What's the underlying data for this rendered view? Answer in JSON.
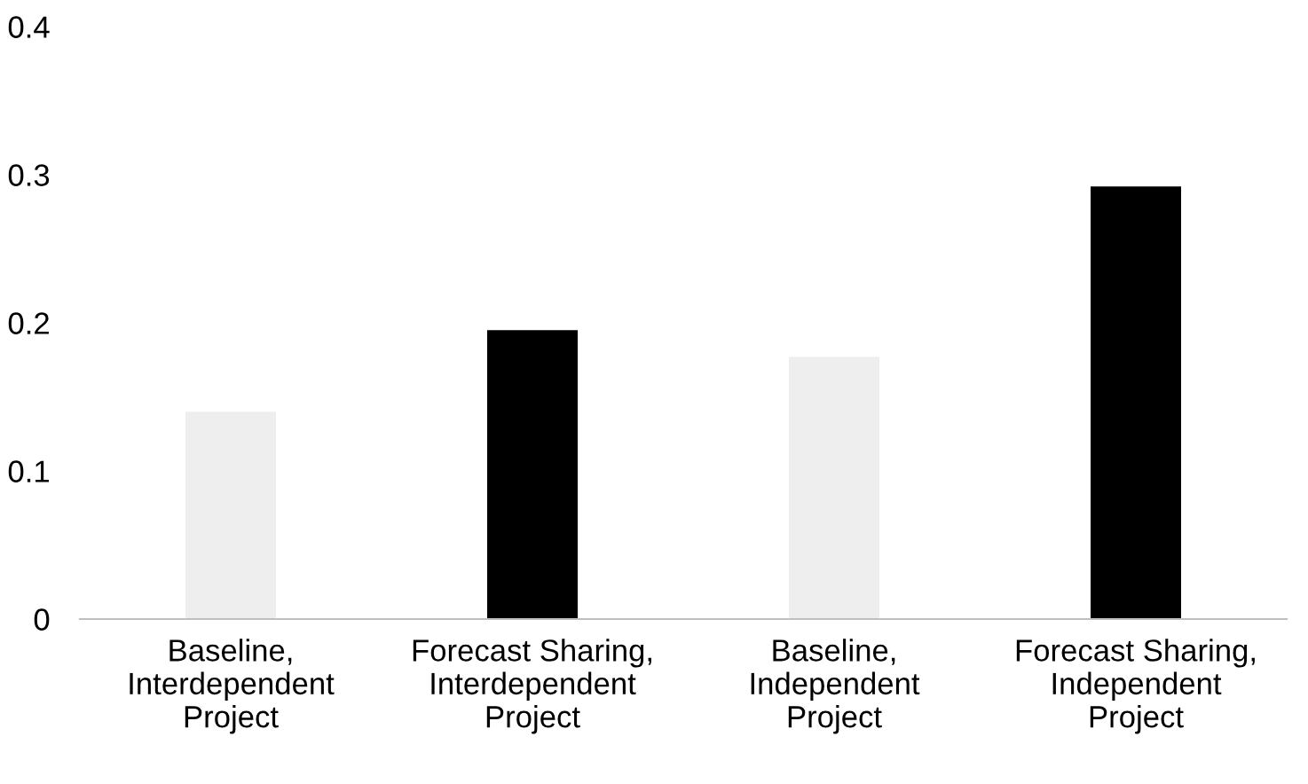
{
  "chart_data": {
    "type": "bar",
    "categories": [
      "Baseline,\nInterdependent\nProject",
      "Forecast Sharing,\nInterdependent\nProject",
      "Baseline,\nIndependent\nProject",
      "Forecast Sharing,\nIndependent\nProject"
    ],
    "values": [
      0.14,
      0.195,
      0.177,
      0.292
    ],
    "colors": [
      "#eeeeee",
      "#000000",
      "#eeeeee",
      "#000000"
    ],
    "ylim": [
      0,
      0.4
    ],
    "yticks": [
      0,
      0.1,
      0.2,
      0.3,
      0.4
    ],
    "grid": false
  }
}
